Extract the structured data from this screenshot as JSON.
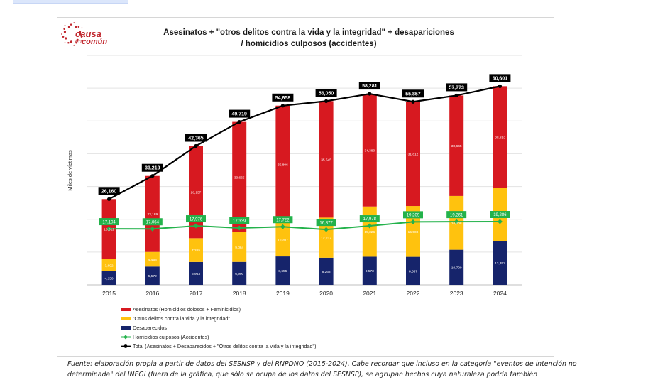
{
  "logo": {
    "text_top": "causa",
    "text_en": "en",
    "text_bottom": "común"
  },
  "chart_data": {
    "type": "bar",
    "title_line1": "Asesinatos + \"otros delitos contra la vida y la integridad\" + desapariciones",
    "title_line2": "/ homicidios culposos (accidentes)",
    "ylabel": "Miles de víctimas",
    "xlabel": "",
    "ylim": [
      0,
      70000
    ],
    "grid": true,
    "categories": [
      "2015",
      "2016",
      "2017",
      "2018",
      "2019",
      "2020",
      "2021",
      "2022",
      "2023",
      "2024"
    ],
    "series": [
      {
        "name": "Desaparecidos",
        "type": "stacked-bar",
        "color": "#16246b",
        "label_color": "#ffffff",
        "values": [
          4156,
          5572,
          6963,
          6990,
          8655,
          8268,
          8573,
          8537,
          10700,
          13352
        ],
        "labels": [
          "4,156",
          "5,572",
          "6,963",
          "6,990",
          "8,655",
          "8,268",
          "8,573",
          "8,537",
          "10,700",
          "13,352"
        ]
      },
      {
        "name": "\"Otros delitos contra la vida y la integridad\"",
        "type": "stacked-bar",
        "color": "#ffc20e",
        "label_color": "#ffffff",
        "values": [
          3692,
          4458,
          7265,
          9064,
          10207,
          12237,
          15326,
          15508,
          16408,
          16336
        ],
        "labels": [
          "3,692",
          "4,458",
          "7,265",
          "9,064",
          "10,207",
          "12,237",
          "15,326",
          "15,508",
          "16,408",
          "16,336"
        ]
      },
      {
        "name": "Asesinatos (Homicidios dolosos + Feminicidios)",
        "type": "stacked-bar",
        "color": "#d71920",
        "label_color": "#ffffff",
        "values": [
          18312,
          23189,
          28137,
          33665,
          35806,
          35545,
          34380,
          31812,
          30665,
          30913
        ],
        "labels": [
          "18,312",
          "23,189",
          "28,137",
          "33,665",
          "35,806",
          "35,545",
          "34,380",
          "31,812",
          "30,665",
          "30,913"
        ]
      },
      {
        "name": "Homicidios culposos (Accidentes)",
        "type": "line",
        "color": "#23b24b",
        "values": [
          17104,
          17064,
          17976,
          17339,
          17722,
          16877,
          17978,
          19209,
          19261,
          19286
        ],
        "labels": [
          "17,104",
          "17,064",
          "17,976",
          "17,339",
          "17,722",
          "16,877",
          "17,978",
          "19,209",
          "19,261",
          "19,286"
        ]
      },
      {
        "name": "Total (Asesinatos + Desaparecidos + \"Otros delitos contra la vida y la integridad\")",
        "type": "line",
        "color": "#000000",
        "values": [
          26160,
          33219,
          42365,
          49719,
          54658,
          56050,
          58281,
          55857,
          57773,
          60601
        ],
        "labels": [
          "26,160",
          "33,219",
          "42,365",
          "49,719",
          "54,658",
          "56,050",
          "58,281",
          "55,857",
          "57,773",
          "60,601"
        ]
      }
    ],
    "legend_order": [
      2,
      1,
      0,
      3,
      4
    ],
    "legend_position": "bottom-left"
  },
  "footer": {
    "line1": "Fuente: elaboración propia a partir de datos del SESNSP y del RNPDNO (2015-2024). Cabe recordar que incluso en la categoría \"eventos de intención no",
    "line2": "determinada\" del INEGI (fuera de la gráfica, que sólo se ocupa de los datos del SESNSP), se agrupan hechos cuya naturaleza podría también"
  }
}
